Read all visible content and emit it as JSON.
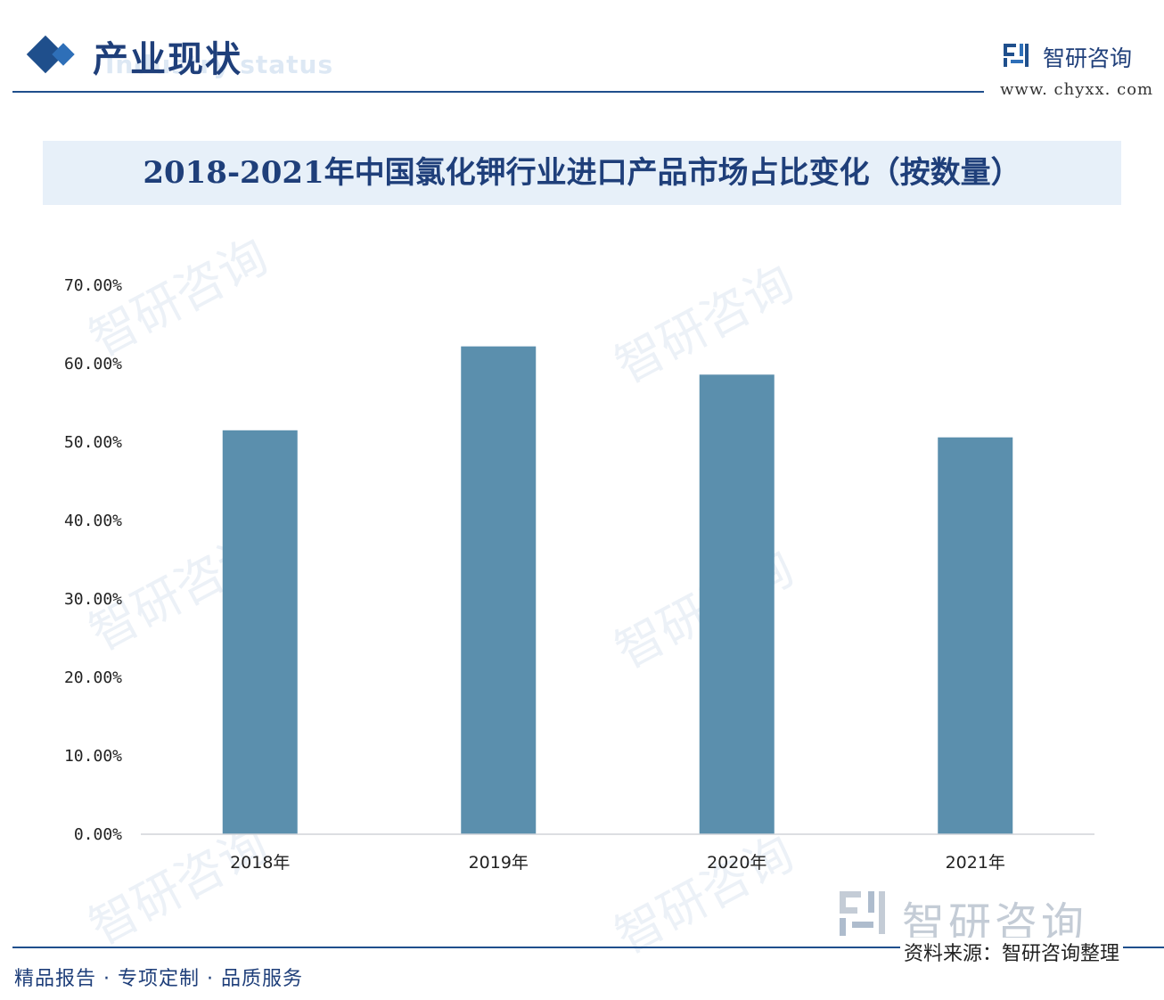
{
  "header": {
    "section_title": "产业现状",
    "section_subtitle": "Industry status",
    "brand_name": "智研咨询",
    "brand_url": "www. chyxx. com"
  },
  "chart_data": {
    "type": "bar",
    "title": "2018-2021年中国氯化钾行业进口产品市场占比变化（按数量）",
    "categories": [
      "2018年",
      "2019年",
      "2020年",
      "2021年"
    ],
    "values": [
      51.5,
      62.2,
      58.6,
      50.6
    ],
    "ylim": [
      0,
      70
    ],
    "yticks": [
      "0.00%",
      "10.00%",
      "20.00%",
      "30.00%",
      "40.00%",
      "50.00%",
      "60.00%",
      "70.00%"
    ],
    "xlabel": "",
    "ylabel": "",
    "grid": false,
    "bar_color": "#5b8fad"
  },
  "footer": {
    "logo_text": "智研咨询",
    "source": "资料来源：智研咨询整理",
    "slogan": "精品报告 · 专项定制 · 品质服务"
  },
  "colors": {
    "primary": "#1f4f8c",
    "title_band": "#e7f0f9",
    "bar": "#5b8fad"
  }
}
